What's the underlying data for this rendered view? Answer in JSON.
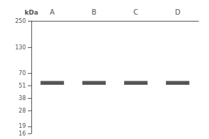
{
  "chart_data": {
    "type": "band",
    "ylabel": "kDa",
    "categories": [
      "A",
      "B",
      "C",
      "D"
    ],
    "values": [
      55,
      55,
      55,
      55
    ],
    "band_half_heights": [
      2.5,
      2.5,
      2.5,
      2.5
    ],
    "color": "#555555",
    "log": "y",
    "ylim": [
      16,
      250
    ],
    "yticks": [
      250,
      130,
      70,
      51,
      38,
      28,
      19,
      16
    ],
    "grid": false
  }
}
